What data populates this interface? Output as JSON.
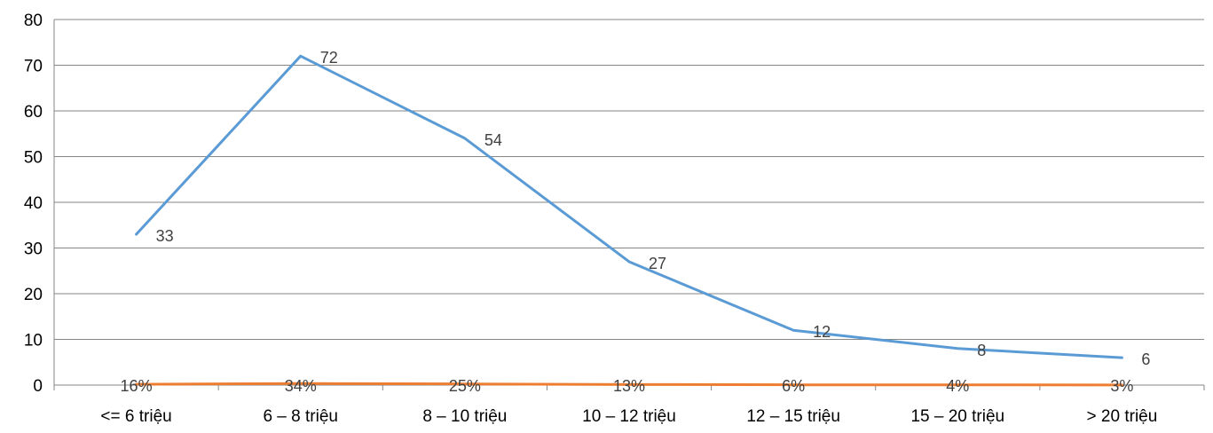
{
  "chart_data": {
    "type": "line",
    "title": "",
    "xlabel": "",
    "ylabel": "",
    "categories": [
      "<= 6 triệu",
      "6 – 8 triệu",
      "8 – 10 triệu",
      "10 – 12 triệu",
      "12 – 15 triệu",
      "15 – 20 triệu",
      "> 20 triệu"
    ],
    "ylim": [
      0,
      80
    ],
    "yticks": [
      0,
      10,
      20,
      30,
      40,
      50,
      60,
      70,
      80
    ],
    "grid": true,
    "legend": "none",
    "series": [
      {
        "values": [
          33,
          72,
          54,
          27,
          12,
          8,
          6
        ],
        "labels": [
          "33",
          "72",
          "54",
          "27",
          "12",
          "8",
          "6"
        ],
        "color": "#5b9bd5"
      },
      {
        "values": [
          0.16,
          0.34,
          0.25,
          0.13,
          0.06,
          0.04,
          0.03
        ],
        "labels": [
          "16%",
          "34%",
          "25%",
          "13%",
          "6%",
          "4%",
          "3%"
        ],
        "color": "#ed7d31"
      }
    ]
  }
}
